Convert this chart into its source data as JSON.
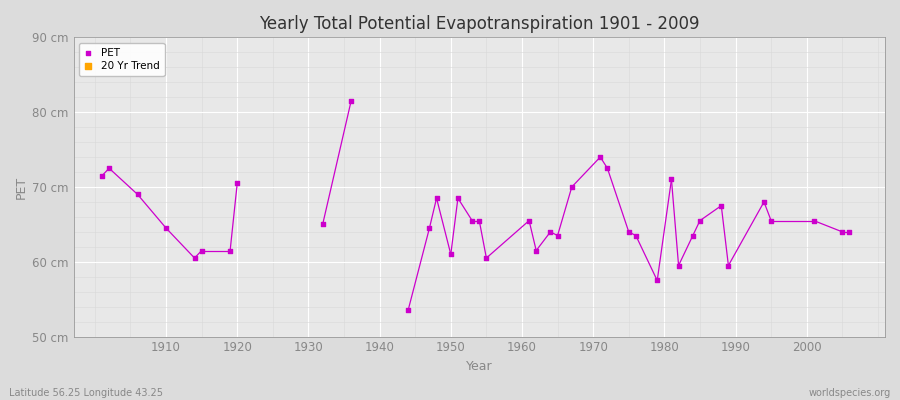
{
  "title": "Yearly Total Potential Evapotranspiration 1901 - 2009",
  "xlabel": "Year",
  "ylabel": "PET",
  "ylim": [
    50,
    90
  ],
  "yticks": [
    50,
    60,
    70,
    80,
    90
  ],
  "ytick_labels": [
    "50 cm",
    "60 cm",
    "70 cm",
    "80 cm",
    "90 cm"
  ],
  "bg_color": "#dcdcdc",
  "plot_bg_color": "#e8e8e8",
  "pet_color": "#cc00cc",
  "trend_color": "#ffa500",
  "footer_left": "Latitude 56.25 Longitude 43.25",
  "footer_right": "worldspecies.org",
  "years": [
    1901,
    1902,
    1906,
    1910,
    1914,
    1915,
    1919,
    1920,
    1932,
    1936,
    1944,
    1947,
    1948,
    1950,
    1951,
    1953,
    1954,
    1955,
    1961,
    1962,
    1964,
    1965,
    1967,
    1971,
    1972,
    1975,
    1976,
    1979,
    1981,
    1982,
    1984,
    1985,
    1988,
    1989,
    1994,
    1995,
    2001,
    2005,
    2006
  ],
  "pet_values": [
    71.5,
    72.5,
    69.0,
    64.5,
    60.5,
    61.5,
    61.5,
    70.5,
    65.0,
    81.5,
    53.5,
    64.5,
    68.5,
    61.0,
    68.5,
    65.5,
    65.5,
    60.5,
    65.5,
    61.5,
    64.0,
    63.5,
    70.0,
    74.0,
    72.5,
    64.0,
    63.5,
    57.5,
    71.0,
    59.5,
    63.5,
    65.5,
    67.5,
    59.5,
    68.0,
    65.5,
    65.5,
    64.0,
    64.0
  ],
  "xlim": [
    1897,
    2011
  ],
  "xticks": [
    1910,
    1920,
    1930,
    1940,
    1950,
    1960,
    1970,
    1980,
    1990,
    2000
  ],
  "major_grid_color": "#ffffff",
  "minor_grid_color": "#d8d8d8",
  "title_fontsize": 12,
  "axis_label_fontsize": 9,
  "tick_label_fontsize": 8.5,
  "tick_color": "#888888",
  "spine_color": "#999999"
}
